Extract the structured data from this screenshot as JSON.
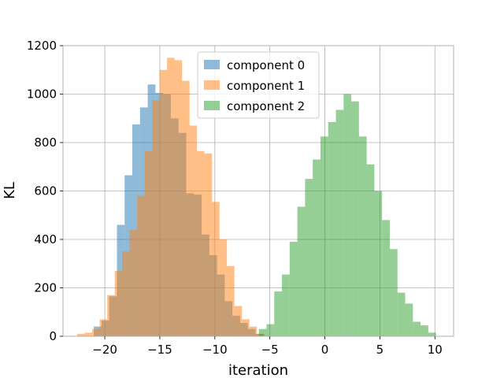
{
  "chart_data": {
    "type": "bar",
    "subtype": "histogram",
    "title": "",
    "xlabel": "iteration",
    "ylabel": "KL",
    "xlim": [
      -23.8,
      11.7
    ],
    "ylim": [
      0,
      1200
    ],
    "xticks": [
      -20,
      -15,
      -10,
      -5,
      0,
      5,
      10
    ],
    "xtick_labels": [
      "−20",
      "−15",
      "−10",
      "−5",
      "0",
      "5",
      "10"
    ],
    "yticks": [
      0,
      200,
      400,
      600,
      800,
      1000,
      1200
    ],
    "ytick_labels": [
      "0",
      "200",
      "400",
      "600",
      "800",
      "1000",
      "1200"
    ],
    "grid": true,
    "legend_position": "upper-center",
    "series": [
      {
        "name": "component 0",
        "color": "#1f77b4",
        "alpha": 0.5,
        "bins": [
          -21.0,
          -20.3,
          -19.6,
          -18.9,
          -18.2,
          -17.5,
          -16.8,
          -16.1,
          -15.4,
          -14.7,
          -14.0,
          -13.3,
          -12.6,
          -11.9,
          -11.2,
          -10.5,
          -9.8,
          -9.1,
          -8.4,
          -7.7,
          -7.0,
          -6.3,
          -5.6
        ],
        "values": [
          40,
          65,
          165,
          460,
          665,
          875,
          945,
          1040,
          1005,
          1000,
          900,
          840,
          590,
          585,
          420,
          335,
          255,
          145,
          85,
          55,
          30,
          10
        ]
      },
      {
        "name": "component 1",
        "color": "#ff7f0e",
        "alpha": 0.5,
        "bins": [
          -22.5,
          -21.82,
          -21.14,
          -20.46,
          -19.78,
          -19.1,
          -18.42,
          -17.74,
          -17.06,
          -16.38,
          -15.7,
          -15.02,
          -14.34,
          -13.66,
          -12.98,
          -12.3,
          -11.62,
          -10.94,
          -10.26,
          -9.58,
          -8.9,
          -8.22,
          -7.54,
          -6.86,
          -6.18,
          -5.5
        ],
        "values": [
          10,
          15,
          30,
          70,
          170,
          270,
          350,
          440,
          580,
          765,
          975,
          1100,
          1150,
          1140,
          1055,
          870,
          765,
          755,
          555,
          400,
          290,
          125,
          70,
          40,
          10
        ]
      },
      {
        "name": "component 2",
        "color": "#2ca02c",
        "alpha": 0.5,
        "bins": [
          -6.0,
          -5.3,
          -4.6,
          -3.9,
          -3.2,
          -2.5,
          -1.8,
          -1.1,
          -0.4,
          0.3,
          1.0,
          1.7,
          2.4,
          3.1,
          3.8,
          4.5,
          5.2,
          5.9,
          6.6,
          7.3,
          8.0,
          8.7,
          9.4,
          10.1
        ],
        "values": [
          30,
          50,
          185,
          255,
          390,
          535,
          650,
          730,
          825,
          885,
          935,
          1000,
          970,
          825,
          710,
          600,
          480,
          360,
          180,
          135,
          60,
          45,
          15
        ]
      }
    ]
  }
}
